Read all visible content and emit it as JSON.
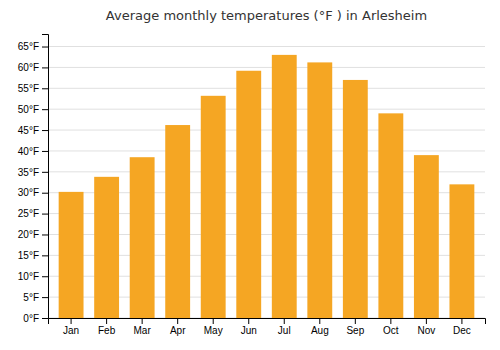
{
  "chart_data": {
    "type": "bar",
    "title": "Average monthly temperatures (°F ) in Arlesheim",
    "categories": [
      "Jan",
      "Feb",
      "Mar",
      "Apr",
      "May",
      "Jun",
      "Jul",
      "Aug",
      "Sep",
      "Oct",
      "Nov",
      "Dec"
    ],
    "values": [
      30.2,
      33.8,
      38.5,
      46.2,
      53.2,
      59.2,
      63.0,
      61.2,
      57.0,
      49.0,
      39.0,
      32.0
    ],
    "color": "#F5A623",
    "ylim": [
      0,
      68
    ],
    "yticks": [
      {
        "value": 0,
        "label": "0°F"
      },
      {
        "value": 5,
        "label": "5°F"
      },
      {
        "value": 10,
        "label": "10°F"
      },
      {
        "value": 15,
        "label": "15°F"
      },
      {
        "value": 20,
        "label": "20°F"
      },
      {
        "value": 25,
        "label": "25°F"
      },
      {
        "value": 30,
        "label": "30°F"
      },
      {
        "value": 35,
        "label": "35°F"
      },
      {
        "value": 40,
        "label": "40°F"
      },
      {
        "value": 45,
        "label": "45°F"
      },
      {
        "value": 50,
        "label": "50°F"
      },
      {
        "value": 55,
        "label": "55°F"
      },
      {
        "value": 60,
        "label": "60°F"
      },
      {
        "value": 65,
        "label": "65°F"
      }
    ],
    "grid": true
  }
}
